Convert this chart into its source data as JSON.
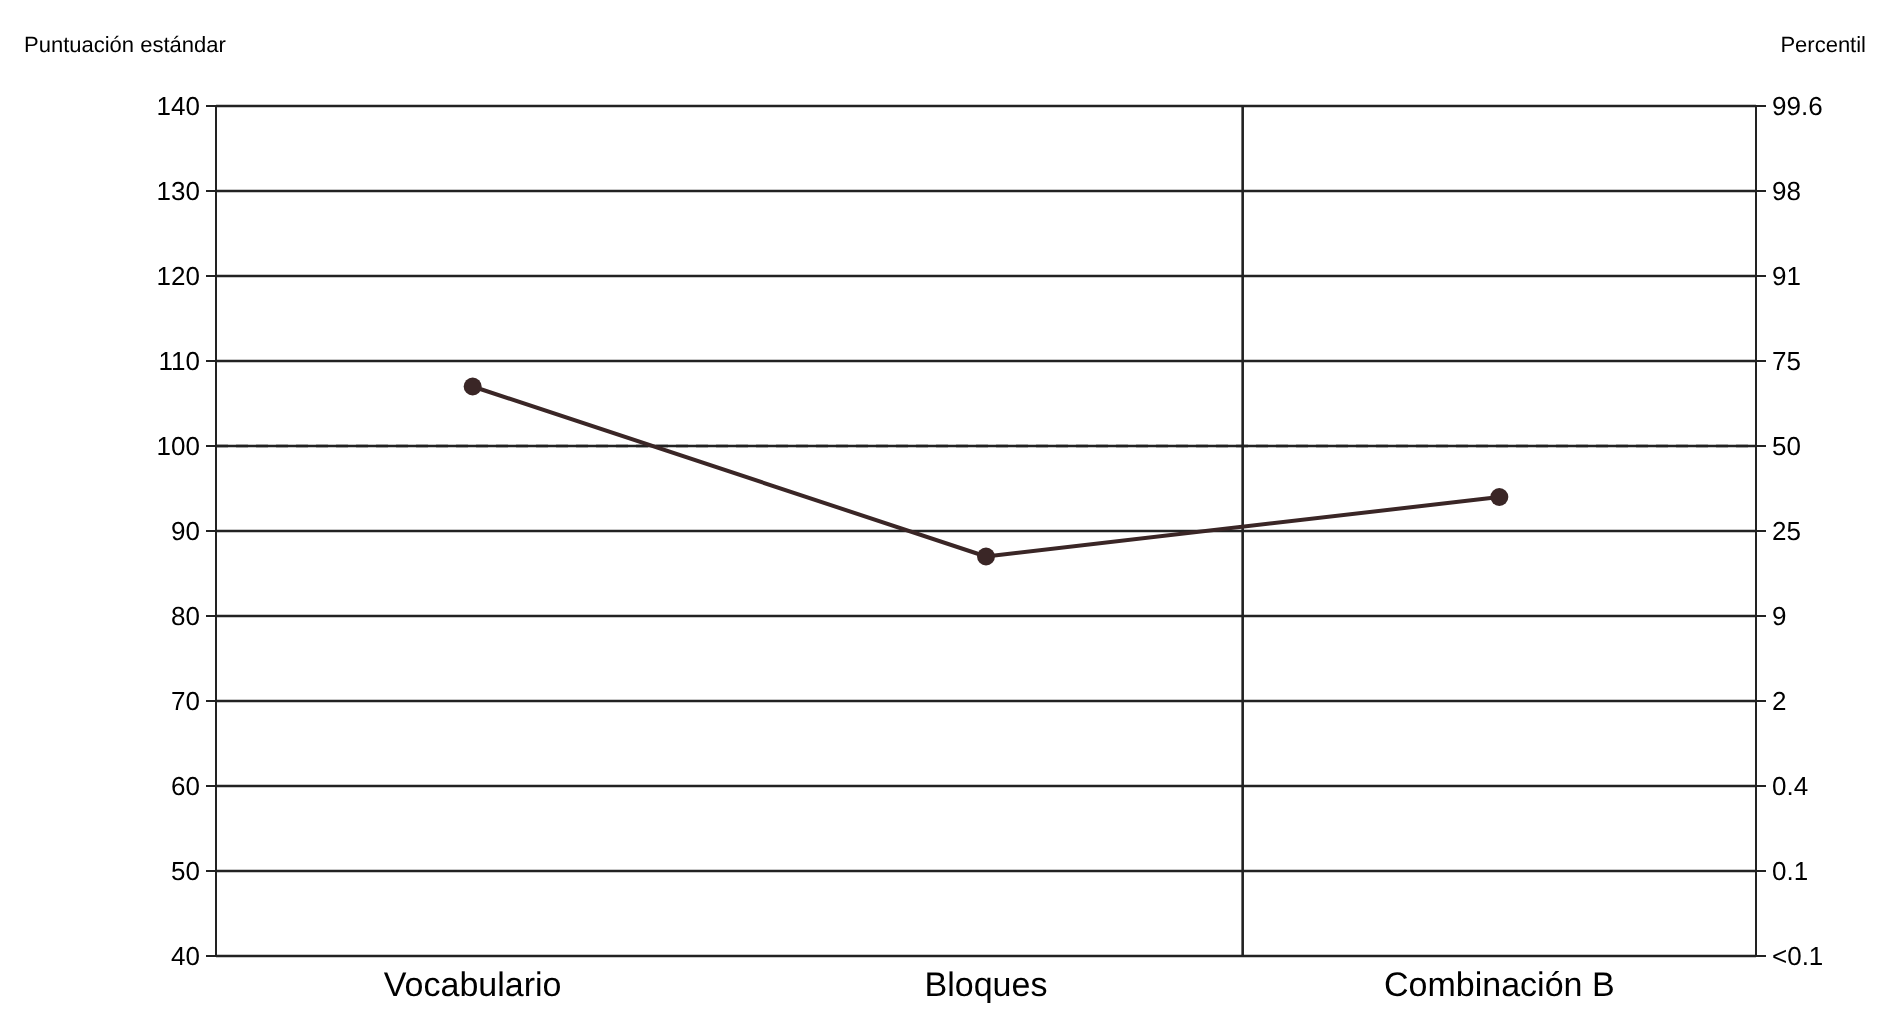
{
  "chart_data": {
    "type": "line",
    "ylabel": "Puntuación estándar",
    "y2label": "Percentil",
    "categories": [
      "Vocabulario",
      "Bloques",
      "Combinación B"
    ],
    "series": [
      {
        "color": "#3a2626",
        "values": [
          107,
          87,
          94
        ]
      }
    ],
    "ylim": [
      40,
      140
    ],
    "yticks": [
      40,
      50,
      60,
      70,
      80,
      90,
      100,
      110,
      120,
      130,
      140
    ],
    "y2_categories": [
      "99.6",
      "98",
      "91",
      "75",
      "50",
      "25",
      "9",
      "2",
      "0.4",
      "0.1",
      "<0.1"
    ],
    "ref_lines": [
      {
        "axis": "y",
        "value": 100,
        "line_style": "dashed"
      }
    ],
    "grid": "y",
    "marker": "circle",
    "line_style": "solid"
  }
}
